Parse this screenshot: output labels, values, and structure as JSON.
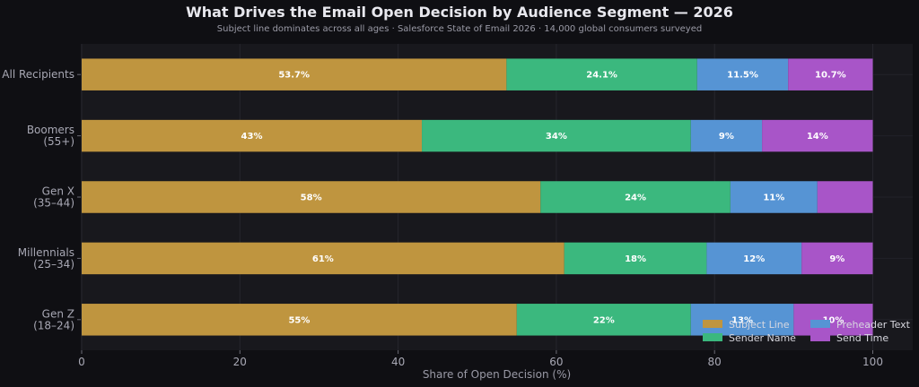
{
  "chart_data": {
    "type": "bar",
    "orientation": "horizontal",
    "stacked": true,
    "title": "What Drives the Email Open Decision by Audience Segment — 2026",
    "subtitle": "Subject line dominates across all ages · Salesforce State of Email 2026 · 14,000 global consumers surveyed",
    "xlabel": "Share of Open Decision (%)",
    "ylabel": "",
    "xlim": [
      0,
      100
    ],
    "xticks": [
      0,
      20,
      40,
      60,
      80,
      100
    ],
    "grid": true,
    "legend_position": "bottom-right",
    "categories": [
      [
        "All Recipients"
      ],
      [
        "Boomers",
        "(55+)"
      ],
      [
        "Gen X",
        "(35–44)"
      ],
      [
        "Millennials",
        "(25–34)"
      ],
      [
        "Gen Z",
        "(18–24)"
      ]
    ],
    "series": [
      {
        "name": "Subject Line",
        "color": "#bf953f",
        "values": [
          53.7,
          43,
          58,
          61,
          55
        ],
        "labels": [
          "53.7%",
          "43%",
          "58%",
          "61%",
          "55%"
        ]
      },
      {
        "name": "Sender Name",
        "color": "#3bb87e",
        "values": [
          24.1,
          34,
          24,
          18,
          22
        ],
        "labels": [
          "24.1%",
          "34%",
          "24%",
          "18%",
          "22%"
        ]
      },
      {
        "name": "Preheader Text",
        "color": "#5694d4",
        "values": [
          11.5,
          9,
          11,
          12,
          13
        ],
        "labels": [
          "11.5%",
          "9%",
          "11%",
          "12%",
          "13%"
        ]
      },
      {
        "name": "Send Time",
        "color": "#a855c8",
        "values": [
          10.7,
          14,
          7,
          9,
          10
        ],
        "labels": [
          "10.7%",
          "14%",
          "",
          "9%",
          "10%"
        ]
      }
    ]
  }
}
